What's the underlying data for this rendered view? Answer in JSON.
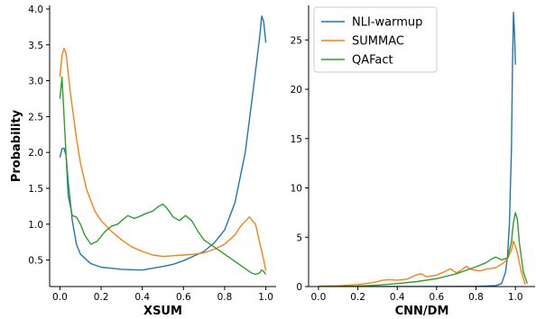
{
  "chart_data": [
    {
      "type": "line",
      "panel": "left",
      "title": "",
      "xlabel": "XSUM",
      "ylabel": "Probability",
      "xlim": [
        -0.05,
        1.05
      ],
      "ylim": [
        0.13,
        4.05
      ],
      "xticks": [
        0.0,
        0.2,
        0.4,
        0.6,
        0.8,
        1.0
      ],
      "xtick_labels": [
        "0.0",
        "0.2",
        "0.4",
        "0.6",
        "0.8",
        "1.0"
      ],
      "yticks": [
        0.5,
        1.0,
        1.5,
        2.0,
        2.5,
        3.0,
        3.5,
        4.0
      ],
      "ytick_labels": [
        "0.5",
        "1.0",
        "1.5",
        "2.0",
        "2.5",
        "3.0",
        "3.5",
        "4.0"
      ],
      "grid": false,
      "series": [
        {
          "name": "NLI-warmup",
          "color": "#1f77b4",
          "points": [
            [
              0.0,
              1.93
            ],
            [
              0.01,
              2.05
            ],
            [
              0.02,
              2.06
            ],
            [
              0.03,
              1.95
            ],
            [
              0.04,
              1.6
            ],
            [
              0.06,
              1.05
            ],
            [
              0.08,
              0.72
            ],
            [
              0.1,
              0.58
            ],
            [
              0.15,
              0.45
            ],
            [
              0.2,
              0.4
            ],
            [
              0.3,
              0.37
            ],
            [
              0.4,
              0.36
            ],
            [
              0.5,
              0.41
            ],
            [
              0.55,
              0.44
            ],
            [
              0.6,
              0.49
            ],
            [
              0.7,
              0.62
            ],
            [
              0.75,
              0.74
            ],
            [
              0.8,
              0.92
            ],
            [
              0.85,
              1.3
            ],
            [
              0.9,
              2.0
            ],
            [
              0.94,
              2.9
            ],
            [
              0.97,
              3.6
            ],
            [
              0.98,
              3.9
            ],
            [
              0.99,
              3.82
            ],
            [
              1.0,
              3.53
            ]
          ]
        },
        {
          "name": "SUMMAC",
          "color": "#ff7f0e",
          "points": [
            [
              0.0,
              3.05
            ],
            [
              0.01,
              3.35
            ],
            [
              0.02,
              3.45
            ],
            [
              0.03,
              3.38
            ],
            [
              0.05,
              2.85
            ],
            [
              0.08,
              2.2
            ],
            [
              0.1,
              1.85
            ],
            [
              0.13,
              1.48
            ],
            [
              0.17,
              1.18
            ],
            [
              0.2,
              1.05
            ],
            [
              0.25,
              0.9
            ],
            [
              0.3,
              0.78
            ],
            [
              0.35,
              0.68
            ],
            [
              0.4,
              0.62
            ],
            [
              0.45,
              0.57
            ],
            [
              0.5,
              0.55
            ],
            [
              0.55,
              0.56
            ],
            [
              0.6,
              0.57
            ],
            [
              0.65,
              0.58
            ],
            [
              0.7,
              0.6
            ],
            [
              0.75,
              0.65
            ],
            [
              0.8,
              0.72
            ],
            [
              0.85,
              0.85
            ],
            [
              0.88,
              0.98
            ],
            [
              0.92,
              1.1
            ],
            [
              0.95,
              1.0
            ],
            [
              0.97,
              0.75
            ],
            [
              0.99,
              0.5
            ],
            [
              1.0,
              0.35
            ]
          ]
        },
        {
          "name": "QAFact",
          "color": "#2ca02c",
          "points": [
            [
              0.0,
              2.75
            ],
            [
              0.01,
              3.05
            ],
            [
              0.02,
              2.5
            ],
            [
              0.04,
              1.4
            ],
            [
              0.06,
              1.12
            ],
            [
              0.08,
              1.1
            ],
            [
              0.1,
              1.0
            ],
            [
              0.12,
              0.85
            ],
            [
              0.15,
              0.72
            ],
            [
              0.18,
              0.76
            ],
            [
              0.22,
              0.9
            ],
            [
              0.25,
              0.97
            ],
            [
              0.28,
              1.0
            ],
            [
              0.3,
              1.05
            ],
            [
              0.33,
              1.12
            ],
            [
              0.36,
              1.08
            ],
            [
              0.38,
              1.1
            ],
            [
              0.42,
              1.15
            ],
            [
              0.45,
              1.18
            ],
            [
              0.48,
              1.25
            ],
            [
              0.5,
              1.28
            ],
            [
              0.52,
              1.22
            ],
            [
              0.55,
              1.1
            ],
            [
              0.58,
              1.05
            ],
            [
              0.61,
              1.12
            ],
            [
              0.64,
              1.05
            ],
            [
              0.67,
              0.9
            ],
            [
              0.7,
              0.78
            ],
            [
              0.75,
              0.68
            ],
            [
              0.8,
              0.58
            ],
            [
              0.85,
              0.48
            ],
            [
              0.88,
              0.42
            ],
            [
              0.9,
              0.38
            ],
            [
              0.93,
              0.32
            ],
            [
              0.95,
              0.3
            ],
            [
              0.97,
              0.32
            ],
            [
              0.98,
              0.36
            ],
            [
              0.99,
              0.34
            ],
            [
              1.0,
              0.3
            ]
          ]
        }
      ]
    },
    {
      "type": "line",
      "panel": "right",
      "title": "",
      "xlabel": "CNN/DM",
      "ylabel": "",
      "xlim": [
        -0.05,
        1.1
      ],
      "ylim": [
        0,
        28.5
      ],
      "xticks": [
        0.0,
        0.2,
        0.4,
        0.6,
        0.8,
        1.0
      ],
      "xtick_labels": [
        "0.0",
        "0.2",
        "0.4",
        "0.6",
        "0.8",
        "1.0"
      ],
      "yticks": [
        0,
        5,
        10,
        15,
        20,
        25
      ],
      "ytick_labels": [
        "0",
        "5",
        "10",
        "15",
        "20",
        "25"
      ],
      "grid": false,
      "legend": {
        "placement": "top-left",
        "entries": [
          "NLI-warmup",
          "SUMMAC",
          "QAFact"
        ]
      },
      "series": [
        {
          "name": "NLI-warmup",
          "color": "#1f77b4",
          "points": [
            [
              0.0,
              0.0
            ],
            [
              0.5,
              0.0
            ],
            [
              0.8,
              0.02
            ],
            [
              0.9,
              0.1
            ],
            [
              0.93,
              0.3
            ],
            [
              0.95,
              1.5
            ],
            [
              0.96,
              3.0
            ],
            [
              0.97,
              6.5
            ],
            [
              0.98,
              14
            ],
            [
              0.985,
              22
            ],
            [
              0.99,
              27.8
            ],
            [
              0.995,
              26
            ],
            [
              1.0,
              22.5
            ]
          ]
        },
        {
          "name": "SUMMAC",
          "color": "#ff7f0e",
          "points": [
            [
              0.0,
              0.05
            ],
            [
              0.1,
              0.08
            ],
            [
              0.2,
              0.2
            ],
            [
              0.28,
              0.4
            ],
            [
              0.33,
              0.65
            ],
            [
              0.36,
              0.7
            ],
            [
              0.4,
              0.65
            ],
            [
              0.45,
              0.75
            ],
            [
              0.5,
              1.2
            ],
            [
              0.52,
              1.3
            ],
            [
              0.55,
              1.0
            ],
            [
              0.6,
              1.15
            ],
            [
              0.65,
              1.6
            ],
            [
              0.67,
              1.8
            ],
            [
              0.7,
              1.4
            ],
            [
              0.72,
              1.6
            ],
            [
              0.75,
              2.05
            ],
            [
              0.78,
              1.7
            ],
            [
              0.82,
              1.6
            ],
            [
              0.86,
              1.8
            ],
            [
              0.9,
              1.9
            ],
            [
              0.94,
              2.4
            ],
            [
              0.96,
              2.8
            ],
            [
              0.98,
              3.7
            ],
            [
              0.99,
              4.6
            ],
            [
              1.0,
              4.1
            ],
            [
              1.01,
              3.4
            ],
            [
              1.03,
              1.5
            ],
            [
              1.05,
              0.2
            ]
          ]
        },
        {
          "name": "QAFact",
          "color": "#2ca02c",
          "points": [
            [
              0.0,
              0.0
            ],
            [
              0.2,
              0.05
            ],
            [
              0.3,
              0.15
            ],
            [
              0.4,
              0.3
            ],
            [
              0.5,
              0.5
            ],
            [
              0.6,
              0.8
            ],
            [
              0.7,
              1.3
            ],
            [
              0.8,
              2.0
            ],
            [
              0.85,
              2.4
            ],
            [
              0.88,
              2.8
            ],
            [
              0.9,
              3.0
            ],
            [
              0.93,
              2.7
            ],
            [
              0.96,
              2.9
            ],
            [
              0.98,
              4.5
            ],
            [
              0.99,
              6.5
            ],
            [
              1.0,
              7.5
            ],
            [
              1.01,
              6.8
            ],
            [
              1.02,
              4.5
            ],
            [
              1.04,
              1.5
            ],
            [
              1.06,
              0.3
            ]
          ]
        }
      ]
    }
  ]
}
